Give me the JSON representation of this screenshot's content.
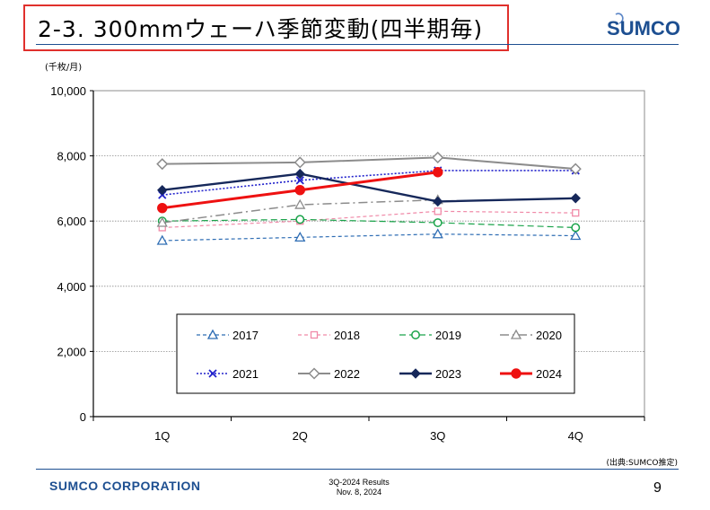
{
  "slide": {
    "title": "2-3. 300mmウェーハ季節変動(四半期毎)",
    "logo_text": "SUMCO",
    "source_note": "(出典:SUMCO推定)",
    "footer_company": "SUMCO CORPORATION",
    "footer_report_line1": "3Q-2024 Results",
    "footer_report_line2": "Nov. 8, 2024",
    "page_number": "9"
  },
  "colors": {
    "brand_blue": "#1d4f91",
    "title_border": "#e0302c"
  },
  "chart_data": {
    "type": "line",
    "title": "",
    "unit_label": "(千枚/月)",
    "xlabel": "",
    "ylabel": "(千枚/月)",
    "categories": [
      "1Q",
      "2Q",
      "3Q",
      "4Q"
    ],
    "ylim": [
      0,
      10000
    ],
    "yticks": [
      0,
      2000,
      4000,
      6000,
      8000,
      10000
    ],
    "ytick_labels": [
      "0",
      "2,000",
      "4,000",
      "6,000",
      "8,000",
      "10,000"
    ],
    "grid": true,
    "legend_position": "lower-center",
    "series": [
      {
        "name": "2017",
        "values": [
          5400,
          5500,
          5600,
          5550
        ],
        "color": "#2e6db4",
        "dash": "4,3",
        "width": 1.2,
        "marker": "triangle"
      },
      {
        "name": "2018",
        "values": [
          5800,
          6000,
          6300,
          6250
        ],
        "color": "#f08aa8",
        "dash": "4,3",
        "width": 1.2,
        "marker": "square"
      },
      {
        "name": "2019",
        "values": [
          6000,
          6050,
          5950,
          5800
        ],
        "color": "#1aa34a",
        "dash": "7,4",
        "width": 1.2,
        "marker": "circle"
      },
      {
        "name": "2020",
        "values": [
          5950,
          6500,
          6650,
          null
        ],
        "color": "#8c8c8c",
        "dash": "10,4,2,4",
        "width": 1.5,
        "marker": "triangle"
      },
      {
        "name": "2021",
        "values": [
          6800,
          7250,
          7550,
          7550
        ],
        "color": "#2222cc",
        "dash": "2,2",
        "width": 1.6,
        "marker": "x"
      },
      {
        "name": "2022",
        "values": [
          7750,
          7800,
          7950,
          7600
        ],
        "color": "#8c8c8c",
        "dash": "",
        "width": 2,
        "marker": "diamond-open"
      },
      {
        "name": "2023",
        "values": [
          6950,
          7450,
          6600,
          6700
        ],
        "color": "#16285a",
        "dash": "",
        "width": 2.4,
        "marker": "diamond-filled"
      },
      {
        "name": "2024",
        "values": [
          6400,
          6950,
          7500,
          null
        ],
        "color": "#ee1111",
        "dash": "",
        "width": 3,
        "marker": "circle-filled"
      }
    ]
  }
}
